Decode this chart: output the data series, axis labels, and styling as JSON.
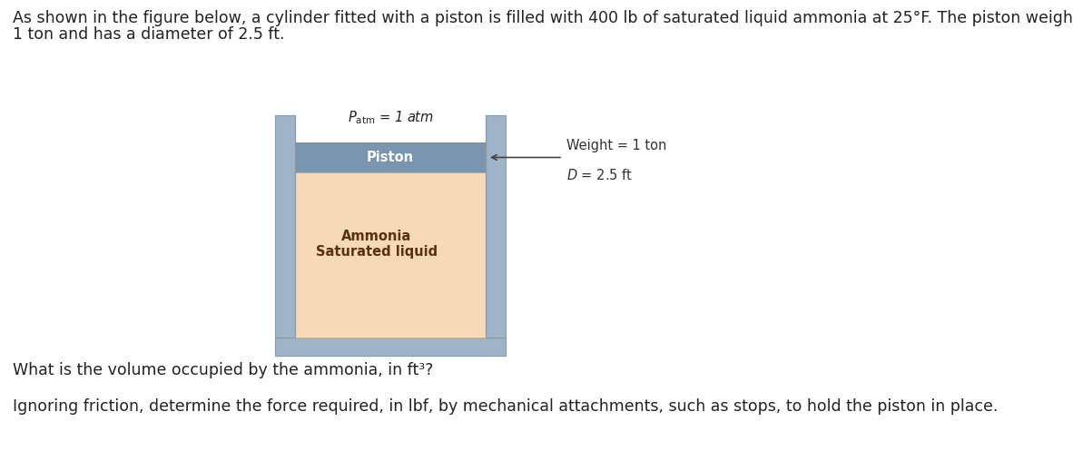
{
  "title_text1": "As shown in the figure below, a cylinder fitted with a piston is filled with 400 lb of saturated liquid ammonia at 25°F. The piston weighs",
  "title_text2": "1 ton and has a diameter of 2.5 ft.",
  "question1": "What is the volume occupied by the ammonia, in ft³?",
  "question2": "Ignoring friction, determine the force required, in lbf, by mechanical attachments, such as stops, to hold the piston in place.",
  "patm_label": "$P_\\mathrm{atm}$ = 1 atm",
  "piston_label": "Piston",
  "ammonia_label": "Ammonia\nSaturated liquid",
  "weight_label": "Weight = 1 ton",
  "diameter_label": "$D$ = 2.5 ft",
  "bg_color": "#ffffff",
  "cylinder_wall_color": "#a0b4c8",
  "cylinder_wall_edge": "#8899aa",
  "piston_color": "#7a95ad",
  "piston_edge": "#5a7590",
  "ammonia_color": "#f5d9b8",
  "ammonia_edge": "#c8a882",
  "text_color": "#222222",
  "label_color": "#333333",
  "title_fontsize": 12.5,
  "question_fontsize": 12.5,
  "diagram_fontsize": 10.5
}
